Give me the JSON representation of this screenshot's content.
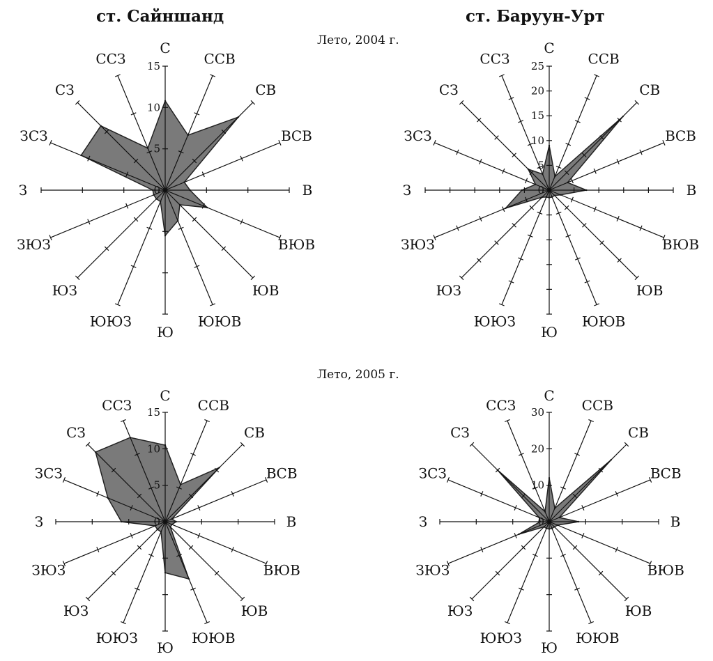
{
  "figure": {
    "station_left": "ст. Сайншанд",
    "station_right": "ст. Баруун-Урт",
    "row_titles": [
      "Лето, 2004 г.",
      "Лето, 2005 г."
    ]
  },
  "directions": [
    "С",
    "ССВ",
    "СВ",
    "ВСВ",
    "В",
    "ВЮВ",
    "ЮВ",
    "ЮЮВ",
    "Ю",
    "ЮЮЗ",
    "ЮЗ",
    "ЗЮЗ",
    "З",
    "ЗСЗ",
    "СЗ",
    "ССЗ"
  ],
  "chart_data": [
    {
      "type": "radar",
      "station": "ст. Сайншанд",
      "period": "Лето, 2004 г.",
      "categories": [
        "С",
        "ССВ",
        "СВ",
        "ВСВ",
        "В",
        "ВЮВ",
        "ЮВ",
        "ЮЮВ",
        "Ю",
        "ЮЮЗ",
        "ЮЗ",
        "ЗЮЗ",
        "З",
        "ЗСЗ",
        "СЗ",
        "ССЗ"
      ],
      "values": [
        10.8,
        7.2,
        12.5,
        2.5,
        3.0,
        5.5,
        2.5,
        4.0,
        5.5,
        1.5,
        1.5,
        1.5,
        1.5,
        11.0,
        11.0,
        5.5
      ],
      "rmax": 15,
      "ticks": [
        0,
        5,
        10,
        15
      ],
      "tick_labels": [
        "0",
        "5",
        "10",
        "15"
      ]
    },
    {
      "type": "radar",
      "station": "ст. Баруун-Урт",
      "period": "Лето, 2004 г.",
      "categories": [
        "С",
        "ССВ",
        "СВ",
        "ВСВ",
        "В",
        "ВЮВ",
        "ЮВ",
        "ЮЮВ",
        "Ю",
        "ЮЮЗ",
        "ЮЗ",
        "ЗЮЗ",
        "З",
        "ЗСЗ",
        "СЗ",
        "ССЗ"
      ],
      "values": [
        9.0,
        3.0,
        21.0,
        4.0,
        7.5,
        2.5,
        1.5,
        1.5,
        1.5,
        1.5,
        2.0,
        9.5,
        5.5,
        3.0,
        6.0,
        3.5
      ],
      "rmax": 25,
      "ticks": [
        0,
        5,
        10,
        15,
        20,
        25
      ],
      "tick_labels": [
        "0",
        "5",
        "10",
        "15",
        "20",
        "25"
      ]
    },
    {
      "type": "radar",
      "station": "ст. Сайншанд",
      "period": "Лето, 2005 г.",
      "categories": [
        "С",
        "ССВ",
        "СВ",
        "ВСВ",
        "В",
        "ВЮВ",
        "ЮВ",
        "ЮЮВ",
        "Ю",
        "ЮЮЗ",
        "ЮЗ",
        "ЗЮЗ",
        "З",
        "ЗСЗ",
        "СЗ",
        "ССЗ"
      ],
      "values": [
        10.5,
        5.5,
        10.5,
        1.0,
        1.5,
        1.0,
        1.0,
        8.5,
        7.0,
        1.5,
        1.5,
        1.5,
        6.0,
        8.5,
        13.5,
        12.5
      ],
      "rmax": 15,
      "ticks": [
        0,
        5,
        10,
        15
      ],
      "tick_labels": [
        "0",
        "5",
        "10",
        "15"
      ]
    },
    {
      "type": "radar",
      "station": "ст. Баруун-Урт",
      "period": "Лето, 2005 г.",
      "categories": [
        "С",
        "ССВ",
        "СВ",
        "ВСВ",
        "В",
        "ВЮВ",
        "ЮВ",
        "ЮЮВ",
        "Ю",
        "ЮЮЗ",
        "ЮЗ",
        "ЗЮЗ",
        "З",
        "ЗСЗ",
        "СЗ",
        "ССЗ"
      ],
      "values": [
        12.0,
        4.0,
        24.0,
        3.0,
        8.0,
        2.5,
        2.0,
        2.0,
        2.0,
        2.0,
        2.0,
        9.0,
        2.5,
        3.0,
        20.0,
        3.0
      ],
      "rmax": 30,
      "ticks": [
        0,
        10,
        20,
        30
      ],
      "tick_labels": [
        "0",
        "10",
        "20",
        "30"
      ]
    }
  ]
}
